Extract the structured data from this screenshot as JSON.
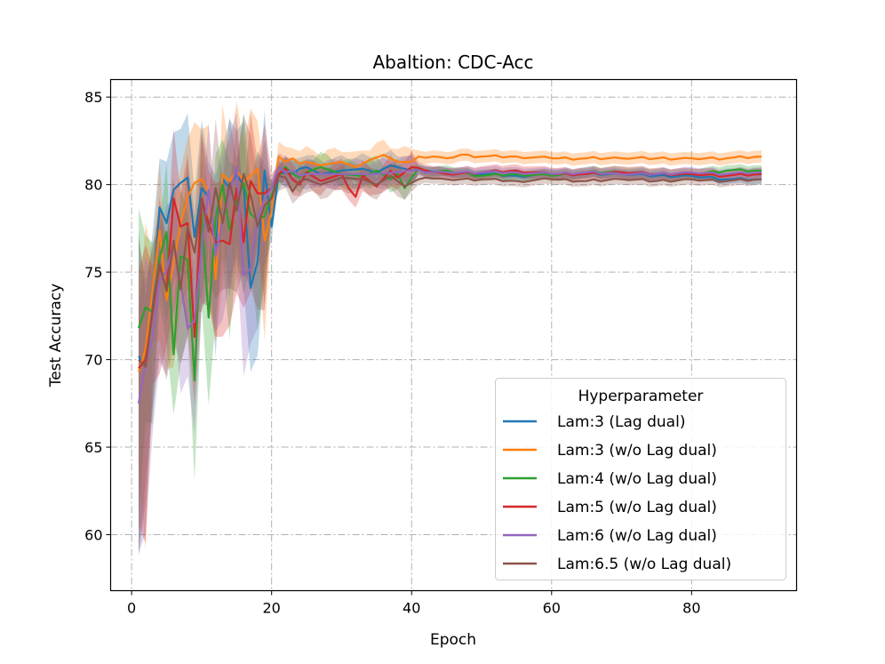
{
  "chart_data": {
    "type": "line",
    "title": "Abaltion: CDC-Acc",
    "xlabel": "Epoch",
    "ylabel": "Test Accuracy",
    "xlim": [
      -3,
      95
    ],
    "ylim": [
      56.8,
      86.0
    ],
    "xticks": [
      0,
      20,
      40,
      60,
      80
    ],
    "yticks": [
      60,
      65,
      70,
      75,
      80,
      85
    ],
    "grid": true,
    "legend": {
      "title": "Hyperparameter",
      "placement": "lower-right"
    },
    "series": [
      {
        "name": "Lam:3 (Lag dual)",
        "color": "#1f77b4",
        "anchors": [
          [
            1,
            70.2
          ],
          [
            2,
            69.6
          ],
          [
            3,
            73.5
          ],
          [
            4,
            78.7
          ],
          [
            5,
            77.8
          ],
          [
            6,
            79.7
          ],
          [
            7,
            80.1
          ],
          [
            8,
            80.4
          ],
          [
            9,
            77.0
          ],
          [
            10,
            79.8
          ],
          [
            11,
            79.3
          ],
          [
            12,
            76.5
          ],
          [
            13,
            80.3
          ],
          [
            14,
            79.8
          ],
          [
            15,
            80.6
          ],
          [
            16,
            79.9
          ],
          [
            17,
            74.1
          ],
          [
            18,
            75.6
          ],
          [
            19,
            80.8
          ],
          [
            20,
            77.6
          ],
          [
            21,
            80.6
          ],
          [
            22,
            80.7
          ],
          [
            23,
            80.6
          ],
          [
            24,
            80.9
          ],
          [
            25,
            81.0
          ],
          [
            27,
            80.6
          ],
          [
            30,
            80.8
          ],
          [
            33,
            80.9
          ],
          [
            35,
            80.7
          ],
          [
            37,
            81.1
          ],
          [
            40,
            80.8
          ],
          [
            42,
            80.8
          ],
          [
            45,
            80.7
          ],
          [
            50,
            80.6
          ],
          [
            55,
            80.5
          ],
          [
            60,
            80.6
          ],
          [
            65,
            80.6
          ],
          [
            70,
            80.6
          ],
          [
            75,
            80.5
          ],
          [
            80,
            80.5
          ],
          [
            85,
            80.3
          ],
          [
            90,
            80.3
          ]
        ],
        "band": 0.25
      },
      {
        "name": "Lam:3 (w/o Lag dual)",
        "color": "#ff7f0e",
        "anchors": [
          [
            1,
            69.3
          ],
          [
            2,
            70.6
          ],
          [
            3,
            74.0
          ],
          [
            4,
            77.4
          ],
          [
            5,
            73.4
          ],
          [
            6,
            75.5
          ],
          [
            7,
            77.8
          ],
          [
            8,
            79.3
          ],
          [
            9,
            80.1
          ],
          [
            10,
            80.3
          ],
          [
            11,
            79.6
          ],
          [
            12,
            74.6
          ],
          [
            13,
            80.6
          ],
          [
            14,
            80.2
          ],
          [
            15,
            80.8
          ],
          [
            16,
            80.2
          ],
          [
            17,
            80.5
          ],
          [
            18,
            80.9
          ],
          [
            19,
            76.8
          ],
          [
            20,
            78.5
          ],
          [
            21,
            81.6
          ],
          [
            22,
            81.3
          ],
          [
            23,
            81.5
          ],
          [
            24,
            81.2
          ],
          [
            25,
            81.3
          ],
          [
            27,
            81.1
          ],
          [
            30,
            81.3
          ],
          [
            32,
            81.0
          ],
          [
            34,
            81.4
          ],
          [
            36,
            81.7
          ],
          [
            38,
            81.3
          ],
          [
            40,
            81.3
          ],
          [
            41,
            81.6
          ],
          [
            43,
            81.6
          ],
          [
            45,
            81.5
          ],
          [
            47,
            81.7
          ],
          [
            50,
            81.6
          ],
          [
            55,
            81.6
          ],
          [
            60,
            81.5
          ],
          [
            65,
            81.5
          ],
          [
            70,
            81.5
          ],
          [
            75,
            81.5
          ],
          [
            80,
            81.5
          ],
          [
            85,
            81.5
          ],
          [
            90,
            81.6
          ]
        ],
        "band": 0.35
      },
      {
        "name": "Lam:4 (w/o Lag dual)",
        "color": "#2ca02c",
        "anchors": [
          [
            1,
            71.8
          ],
          [
            2,
            73.0
          ],
          [
            3,
            72.7
          ],
          [
            4,
            75.8
          ],
          [
            5,
            77.3
          ],
          [
            6,
            70.3
          ],
          [
            7,
            75.9
          ],
          [
            8,
            75.7
          ],
          [
            9,
            68.8
          ],
          [
            10,
            78.3
          ],
          [
            11,
            72.4
          ],
          [
            12,
            78.1
          ],
          [
            13,
            80.0
          ],
          [
            14,
            77.4
          ],
          [
            15,
            79.0
          ],
          [
            16,
            80.1
          ],
          [
            17,
            78.3
          ],
          [
            18,
            78.0
          ],
          [
            19,
            78.2
          ],
          [
            20,
            79.4
          ],
          [
            21,
            80.5
          ],
          [
            22,
            81.0
          ],
          [
            23,
            80.6
          ],
          [
            24,
            80.4
          ],
          [
            25,
            80.7
          ],
          [
            27,
            81.0
          ],
          [
            30,
            80.6
          ],
          [
            33,
            80.5
          ],
          [
            35,
            80.8
          ],
          [
            37,
            80.3
          ],
          [
            38,
            80.6
          ],
          [
            39,
            79.8
          ],
          [
            40,
            80.4
          ],
          [
            41,
            80.9
          ],
          [
            43,
            80.7
          ],
          [
            45,
            80.8
          ],
          [
            50,
            80.5
          ],
          [
            55,
            80.6
          ],
          [
            60,
            80.5
          ],
          [
            65,
            80.7
          ],
          [
            70,
            80.7
          ],
          [
            75,
            80.6
          ],
          [
            80,
            80.6
          ],
          [
            85,
            80.8
          ],
          [
            90,
            80.8
          ]
        ],
        "band": 0.3
      },
      {
        "name": "Lam:5 (w/o Lag dual)",
        "color": "#d62728",
        "anchors": [
          [
            1,
            69.5
          ],
          [
            2,
            70.0
          ],
          [
            3,
            72.7
          ],
          [
            4,
            75.4
          ],
          [
            5,
            74.0
          ],
          [
            6,
            79.2
          ],
          [
            7,
            77.6
          ],
          [
            8,
            77.8
          ],
          [
            9,
            71.3
          ],
          [
            10,
            79.2
          ],
          [
            11,
            77.8
          ],
          [
            12,
            76.7
          ],
          [
            13,
            76.8
          ],
          [
            14,
            76.6
          ],
          [
            15,
            79.8
          ],
          [
            16,
            76.7
          ],
          [
            17,
            80.2
          ],
          [
            18,
            79.5
          ],
          [
            19,
            79.5
          ],
          [
            20,
            79.8
          ],
          [
            21,
            80.6
          ],
          [
            22,
            80.9
          ],
          [
            23,
            80.3
          ],
          [
            24,
            80.0
          ],
          [
            25,
            80.7
          ],
          [
            27,
            80.2
          ],
          [
            30,
            80.6
          ],
          [
            31,
            79.8
          ],
          [
            32,
            79.3
          ],
          [
            33,
            80.5
          ],
          [
            35,
            79.9
          ],
          [
            37,
            80.8
          ],
          [
            38,
            80.4
          ],
          [
            40,
            81.0
          ],
          [
            42,
            80.8
          ],
          [
            45,
            80.6
          ],
          [
            50,
            80.7
          ],
          [
            55,
            80.8
          ],
          [
            60,
            80.6
          ],
          [
            65,
            80.6
          ],
          [
            70,
            80.7
          ],
          [
            75,
            80.6
          ],
          [
            80,
            80.6
          ],
          [
            85,
            80.5
          ],
          [
            90,
            80.6
          ]
        ],
        "band": 0.35
      },
      {
        "name": "Lam:6 (w/o Lag dual)",
        "color": "#9467bd",
        "anchors": [
          [
            1,
            67.5
          ],
          [
            2,
            69.8
          ],
          [
            3,
            71.3
          ],
          [
            4,
            74.5
          ],
          [
            5,
            75.1
          ],
          [
            6,
            76.6
          ],
          [
            7,
            74.4
          ],
          [
            8,
            71.8
          ],
          [
            9,
            72.2
          ],
          [
            10,
            76.3
          ],
          [
            11,
            79.7
          ],
          [
            12,
            75.9
          ],
          [
            13,
            78.0
          ],
          [
            14,
            79.5
          ],
          [
            15,
            81.0
          ],
          [
            16,
            74.8
          ],
          [
            17,
            75.2
          ],
          [
            18,
            78.0
          ],
          [
            19,
            79.2
          ],
          [
            20,
            79.8
          ],
          [
            21,
            81.0
          ],
          [
            22,
            80.7
          ],
          [
            23,
            80.8
          ],
          [
            24,
            80.5
          ],
          [
            25,
            80.6
          ],
          [
            30,
            80.6
          ],
          [
            35,
            80.6
          ],
          [
            40,
            80.8
          ],
          [
            45,
            80.7
          ],
          [
            50,
            80.7
          ],
          [
            55,
            80.7
          ],
          [
            60,
            80.6
          ],
          [
            65,
            80.7
          ],
          [
            70,
            80.6
          ],
          [
            75,
            80.6
          ],
          [
            80,
            80.7
          ],
          [
            85,
            80.6
          ],
          [
            90,
            80.7
          ]
        ],
        "band": 0.3
      },
      {
        "name": "Lam:6.5 (w/o Lag dual)",
        "color": "#8c564b",
        "anchors": [
          [
            1,
            70.0
          ],
          [
            2,
            69.6
          ],
          [
            3,
            72.9
          ],
          [
            4,
            75.5
          ],
          [
            5,
            73.9
          ],
          [
            6,
            76.8
          ],
          [
            7,
            74.0
          ],
          [
            8,
            77.6
          ],
          [
            9,
            76.1
          ],
          [
            10,
            79.1
          ],
          [
            11,
            77.3
          ],
          [
            12,
            79.8
          ],
          [
            13,
            77.8
          ],
          [
            14,
            80.1
          ],
          [
            15,
            78.5
          ],
          [
            16,
            80.6
          ],
          [
            17,
            79.4
          ],
          [
            18,
            77.6
          ],
          [
            19,
            78.8
          ],
          [
            20,
            79.2
          ],
          [
            21,
            80.5
          ],
          [
            22,
            80.4
          ],
          [
            23,
            79.6
          ],
          [
            24,
            80.2
          ],
          [
            25,
            80.3
          ],
          [
            27,
            80.0
          ],
          [
            30,
            80.4
          ],
          [
            33,
            80.3
          ],
          [
            35,
            80.0
          ],
          [
            37,
            80.5
          ],
          [
            39,
            79.9
          ],
          [
            40,
            80.1
          ],
          [
            42,
            80.4
          ],
          [
            45,
            80.3
          ],
          [
            50,
            80.3
          ],
          [
            55,
            80.2
          ],
          [
            60,
            80.3
          ],
          [
            65,
            80.2
          ],
          [
            70,
            80.3
          ],
          [
            75,
            80.2
          ],
          [
            80,
            80.3
          ],
          [
            85,
            80.2
          ],
          [
            90,
            80.3
          ]
        ],
        "band": 0.3
      }
    ]
  }
}
